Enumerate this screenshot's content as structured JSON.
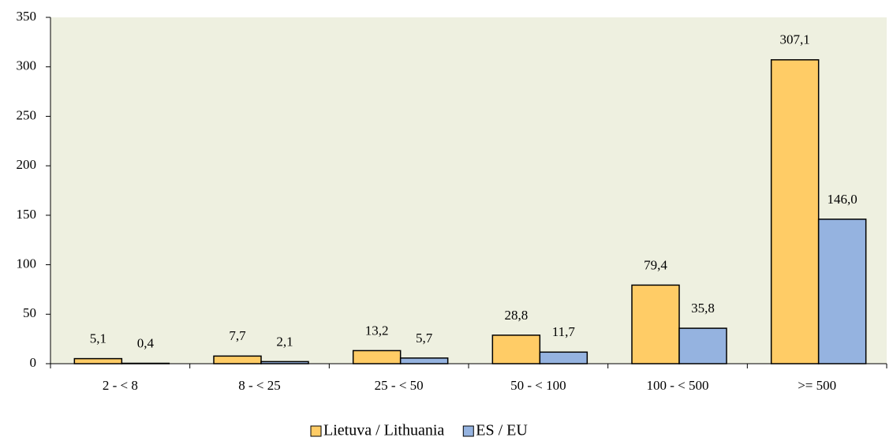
{
  "chart_data": {
    "type": "bar",
    "categories": [
      "2 - < 8",
      "8 - < 25",
      "25 - < 50",
      "50 - < 100",
      "100 - < 500",
      ">= 500"
    ],
    "series": [
      {
        "name": "Lietuva / Lithuania",
        "color": "#ffcc66",
        "values": [
          5.1,
          7.7,
          13.2,
          28.8,
          79.4,
          307.1
        ],
        "value_labels": [
          "5,1",
          "7,7",
          "13,2",
          "28,8",
          "79,4",
          "307,1"
        ]
      },
      {
        "name": "ES / EU",
        "color": "#95b3e0",
        "values": [
          0.4,
          2.1,
          5.7,
          11.7,
          35.8,
          146.0
        ],
        "value_labels": [
          "0,4",
          "2,1",
          "5,7",
          "11,7",
          "35,8",
          "146,0"
        ]
      }
    ],
    "ylim": [
      0,
      350
    ],
    "yticks": [
      0,
      50,
      100,
      150,
      200,
      250,
      300,
      350
    ],
    "grid": false,
    "legend": "bottom",
    "plot_background": "#eef0e0"
  }
}
